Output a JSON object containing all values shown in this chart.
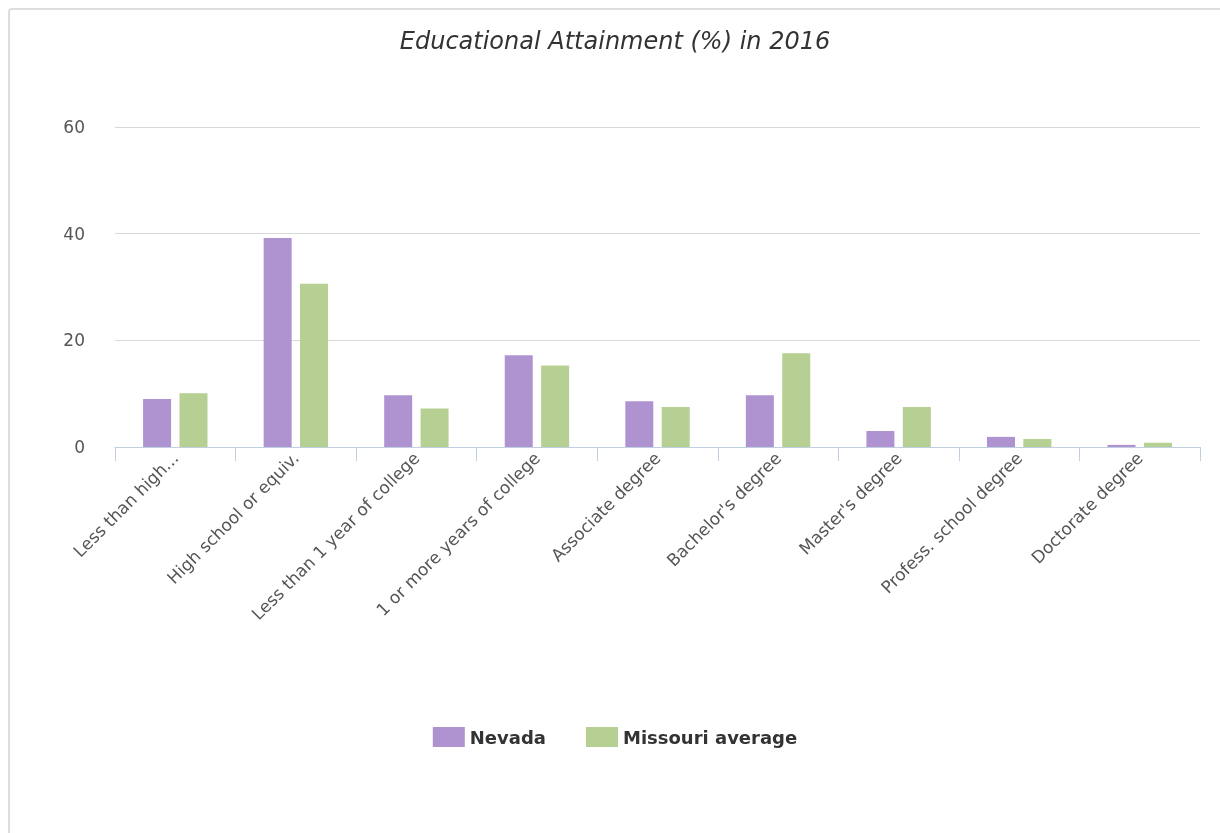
{
  "chart_data": {
    "type": "bar",
    "title": "Educational Attainment (%) in 2016",
    "categories": [
      "Less than high...",
      "High school or equiv.",
      "Less than 1 year of college",
      "1 or more years of college",
      "Associate degree",
      "Bachelor's degree",
      "Master's degree",
      "Profess. school degree",
      "Doctorate degree"
    ],
    "series": [
      {
        "name": "Nevada",
        "color": "#af93d0",
        "values": [
          9.0,
          39.2,
          9.7,
          17.2,
          8.6,
          9.7,
          3.0,
          1.9,
          0.4
        ]
      },
      {
        "name": "Missouri average",
        "color": "#b6cf93",
        "values": [
          10.1,
          30.6,
          7.2,
          15.3,
          7.5,
          17.6,
          7.5,
          1.5,
          0.8
        ]
      }
    ],
    "ylim": [
      0,
      60
    ],
    "yticks": [
      0,
      20,
      40,
      60
    ],
    "grid": "y",
    "legend": "bottom"
  }
}
